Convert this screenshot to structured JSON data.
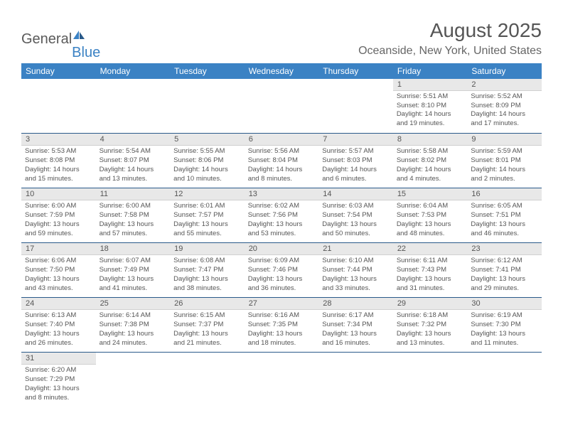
{
  "logo": {
    "word1": "General",
    "word2": "Blue"
  },
  "title": "August 2025",
  "location": "Oceanside, New York, United States",
  "colors": {
    "header_bg": "#3b82c4",
    "header_text": "#ffffff",
    "daynum_bg": "#e8e8e8",
    "row_border": "#2a5a8a",
    "text": "#555555",
    "logo_gray": "#5a5a5a",
    "logo_blue": "#3b82c4"
  },
  "fonts": {
    "title_size_pt": 21,
    "location_size_pt": 12,
    "header_size_pt": 9,
    "daynum_size_pt": 8,
    "body_size_pt": 7
  },
  "weekdays": [
    "Sunday",
    "Monday",
    "Tuesday",
    "Wednesday",
    "Thursday",
    "Friday",
    "Saturday"
  ],
  "weeks": [
    [
      null,
      null,
      null,
      null,
      null,
      {
        "n": "1",
        "sr": "Sunrise: 5:51 AM",
        "ss": "Sunset: 8:10 PM",
        "dl1": "Daylight: 14 hours",
        "dl2": "and 19 minutes."
      },
      {
        "n": "2",
        "sr": "Sunrise: 5:52 AM",
        "ss": "Sunset: 8:09 PM",
        "dl1": "Daylight: 14 hours",
        "dl2": "and 17 minutes."
      }
    ],
    [
      {
        "n": "3",
        "sr": "Sunrise: 5:53 AM",
        "ss": "Sunset: 8:08 PM",
        "dl1": "Daylight: 14 hours",
        "dl2": "and 15 minutes."
      },
      {
        "n": "4",
        "sr": "Sunrise: 5:54 AM",
        "ss": "Sunset: 8:07 PM",
        "dl1": "Daylight: 14 hours",
        "dl2": "and 13 minutes."
      },
      {
        "n": "5",
        "sr": "Sunrise: 5:55 AM",
        "ss": "Sunset: 8:06 PM",
        "dl1": "Daylight: 14 hours",
        "dl2": "and 10 minutes."
      },
      {
        "n": "6",
        "sr": "Sunrise: 5:56 AM",
        "ss": "Sunset: 8:04 PM",
        "dl1": "Daylight: 14 hours",
        "dl2": "and 8 minutes."
      },
      {
        "n": "7",
        "sr": "Sunrise: 5:57 AM",
        "ss": "Sunset: 8:03 PM",
        "dl1": "Daylight: 14 hours",
        "dl2": "and 6 minutes."
      },
      {
        "n": "8",
        "sr": "Sunrise: 5:58 AM",
        "ss": "Sunset: 8:02 PM",
        "dl1": "Daylight: 14 hours",
        "dl2": "and 4 minutes."
      },
      {
        "n": "9",
        "sr": "Sunrise: 5:59 AM",
        "ss": "Sunset: 8:01 PM",
        "dl1": "Daylight: 14 hours",
        "dl2": "and 2 minutes."
      }
    ],
    [
      {
        "n": "10",
        "sr": "Sunrise: 6:00 AM",
        "ss": "Sunset: 7:59 PM",
        "dl1": "Daylight: 13 hours",
        "dl2": "and 59 minutes."
      },
      {
        "n": "11",
        "sr": "Sunrise: 6:00 AM",
        "ss": "Sunset: 7:58 PM",
        "dl1": "Daylight: 13 hours",
        "dl2": "and 57 minutes."
      },
      {
        "n": "12",
        "sr": "Sunrise: 6:01 AM",
        "ss": "Sunset: 7:57 PM",
        "dl1": "Daylight: 13 hours",
        "dl2": "and 55 minutes."
      },
      {
        "n": "13",
        "sr": "Sunrise: 6:02 AM",
        "ss": "Sunset: 7:56 PM",
        "dl1": "Daylight: 13 hours",
        "dl2": "and 53 minutes."
      },
      {
        "n": "14",
        "sr": "Sunrise: 6:03 AM",
        "ss": "Sunset: 7:54 PM",
        "dl1": "Daylight: 13 hours",
        "dl2": "and 50 minutes."
      },
      {
        "n": "15",
        "sr": "Sunrise: 6:04 AM",
        "ss": "Sunset: 7:53 PM",
        "dl1": "Daylight: 13 hours",
        "dl2": "and 48 minutes."
      },
      {
        "n": "16",
        "sr": "Sunrise: 6:05 AM",
        "ss": "Sunset: 7:51 PM",
        "dl1": "Daylight: 13 hours",
        "dl2": "and 46 minutes."
      }
    ],
    [
      {
        "n": "17",
        "sr": "Sunrise: 6:06 AM",
        "ss": "Sunset: 7:50 PM",
        "dl1": "Daylight: 13 hours",
        "dl2": "and 43 minutes."
      },
      {
        "n": "18",
        "sr": "Sunrise: 6:07 AM",
        "ss": "Sunset: 7:49 PM",
        "dl1": "Daylight: 13 hours",
        "dl2": "and 41 minutes."
      },
      {
        "n": "19",
        "sr": "Sunrise: 6:08 AM",
        "ss": "Sunset: 7:47 PM",
        "dl1": "Daylight: 13 hours",
        "dl2": "and 38 minutes."
      },
      {
        "n": "20",
        "sr": "Sunrise: 6:09 AM",
        "ss": "Sunset: 7:46 PM",
        "dl1": "Daylight: 13 hours",
        "dl2": "and 36 minutes."
      },
      {
        "n": "21",
        "sr": "Sunrise: 6:10 AM",
        "ss": "Sunset: 7:44 PM",
        "dl1": "Daylight: 13 hours",
        "dl2": "and 33 minutes."
      },
      {
        "n": "22",
        "sr": "Sunrise: 6:11 AM",
        "ss": "Sunset: 7:43 PM",
        "dl1": "Daylight: 13 hours",
        "dl2": "and 31 minutes."
      },
      {
        "n": "23",
        "sr": "Sunrise: 6:12 AM",
        "ss": "Sunset: 7:41 PM",
        "dl1": "Daylight: 13 hours",
        "dl2": "and 29 minutes."
      }
    ],
    [
      {
        "n": "24",
        "sr": "Sunrise: 6:13 AM",
        "ss": "Sunset: 7:40 PM",
        "dl1": "Daylight: 13 hours",
        "dl2": "and 26 minutes."
      },
      {
        "n": "25",
        "sr": "Sunrise: 6:14 AM",
        "ss": "Sunset: 7:38 PM",
        "dl1": "Daylight: 13 hours",
        "dl2": "and 24 minutes."
      },
      {
        "n": "26",
        "sr": "Sunrise: 6:15 AM",
        "ss": "Sunset: 7:37 PM",
        "dl1": "Daylight: 13 hours",
        "dl2": "and 21 minutes."
      },
      {
        "n": "27",
        "sr": "Sunrise: 6:16 AM",
        "ss": "Sunset: 7:35 PM",
        "dl1": "Daylight: 13 hours",
        "dl2": "and 18 minutes."
      },
      {
        "n": "28",
        "sr": "Sunrise: 6:17 AM",
        "ss": "Sunset: 7:34 PM",
        "dl1": "Daylight: 13 hours",
        "dl2": "and 16 minutes."
      },
      {
        "n": "29",
        "sr": "Sunrise: 6:18 AM",
        "ss": "Sunset: 7:32 PM",
        "dl1": "Daylight: 13 hours",
        "dl2": "and 13 minutes."
      },
      {
        "n": "30",
        "sr": "Sunrise: 6:19 AM",
        "ss": "Sunset: 7:30 PM",
        "dl1": "Daylight: 13 hours",
        "dl2": "and 11 minutes."
      }
    ],
    [
      {
        "n": "31",
        "sr": "Sunrise: 6:20 AM",
        "ss": "Sunset: 7:29 PM",
        "dl1": "Daylight: 13 hours",
        "dl2": "and 8 minutes."
      },
      null,
      null,
      null,
      null,
      null,
      null
    ]
  ]
}
